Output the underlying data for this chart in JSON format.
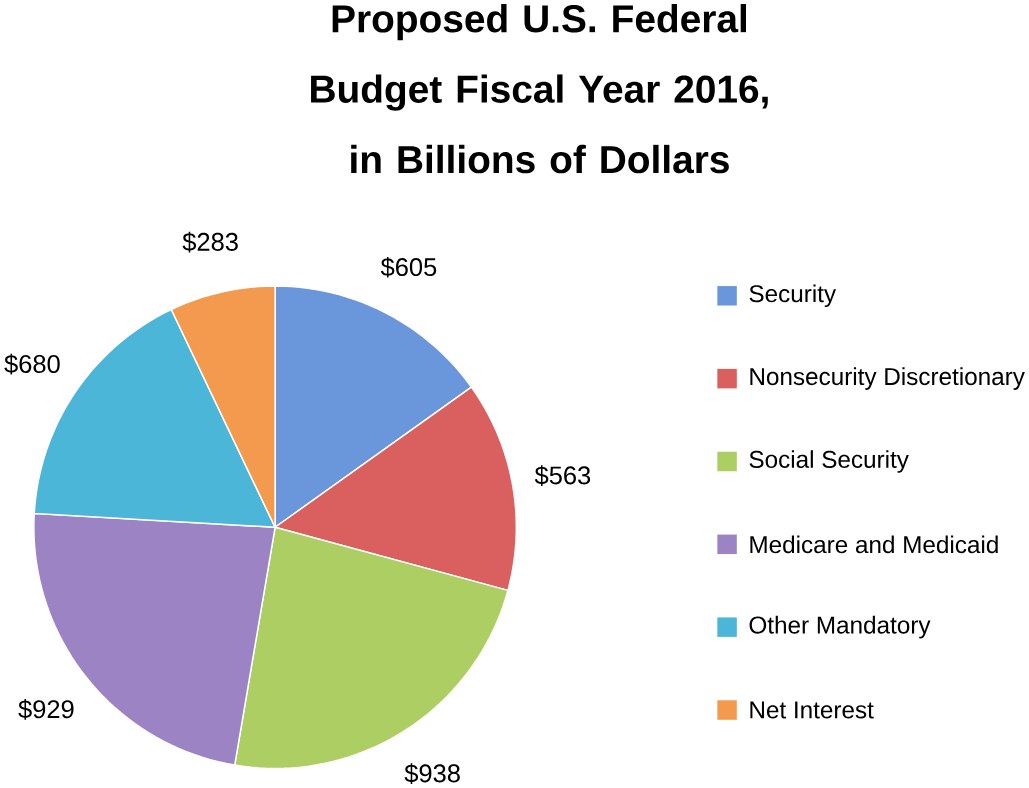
{
  "chart_data": {
    "type": "pie",
    "title": "Proposed U.S. Federal Budget Fiscal Year 2016, in Billions of Dollars",
    "categories": [
      "Security",
      "Nonsecurity Discretionary",
      "Social Security",
      "Medicare and Medicaid",
      "Other Mandatory",
      "Net Interest"
    ],
    "values": [
      605,
      563,
      938,
      929,
      680,
      283
    ],
    "value_labels": [
      "$605",
      "$563",
      "$938",
      "$929",
      "$680",
      "$283"
    ],
    "colors": [
      "#6a97dc",
      "#d9605f",
      "#acce62",
      "#9c84c4",
      "#4bb6d8",
      "#f39a4e"
    ],
    "legend": "right"
  }
}
